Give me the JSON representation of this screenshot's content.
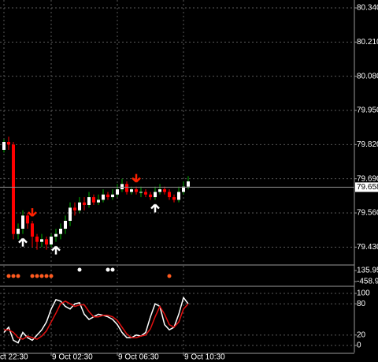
{
  "chart_data": [
    {
      "type": "candlestick",
      "categories": [
        "ct 22:30",
        null,
        null,
        null,
        null,
        null,
        null,
        null,
        null,
        null,
        "9 Oct 02:30",
        null,
        null,
        null,
        null,
        null,
        null,
        null,
        null,
        null,
        null,
        null,
        null,
        null,
        "9 Oct 06:30",
        null,
        null,
        null,
        null,
        null,
        null,
        null,
        null,
        null,
        null,
        null,
        null,
        null,
        "9 Oct 10:30",
        null
      ],
      "open": [
        79.8,
        79.83,
        79.82,
        79.48,
        79.5,
        79.55,
        79.52,
        79.47,
        79.45,
        79.46,
        79.44,
        79.47,
        79.48,
        79.5,
        79.53,
        79.58,
        79.57,
        79.6,
        79.59,
        79.62,
        79.6,
        79.61,
        79.63,
        79.62,
        79.63,
        79.65,
        79.67,
        79.64,
        79.65,
        79.64,
        79.64,
        79.63,
        79.62,
        79.64,
        79.65,
        79.64,
        79.62,
        79.61,
        79.64,
        79.66
      ],
      "high": [
        79.84,
        79.85,
        79.83,
        79.52,
        79.57,
        79.56,
        79.53,
        79.48,
        79.48,
        79.47,
        79.48,
        79.5,
        79.52,
        79.55,
        79.6,
        79.6,
        79.62,
        79.62,
        79.64,
        79.63,
        79.63,
        79.65,
        79.64,
        79.65,
        79.67,
        79.69,
        79.68,
        79.66,
        79.66,
        79.66,
        79.65,
        79.64,
        79.66,
        79.67,
        79.66,
        79.65,
        79.63,
        79.66,
        79.68,
        79.7
      ],
      "low": [
        79.79,
        79.8,
        79.46,
        79.46,
        79.48,
        79.5,
        79.43,
        79.42,
        79.43,
        79.42,
        79.43,
        79.45,
        79.46,
        79.48,
        79.51,
        79.55,
        79.56,
        79.57,
        79.58,
        79.59,
        79.59,
        79.6,
        79.61,
        79.61,
        79.62,
        79.64,
        79.63,
        79.63,
        79.63,
        79.62,
        79.62,
        79.61,
        79.61,
        79.63,
        79.63,
        79.61,
        79.6,
        79.6,
        79.63,
        79.65
      ],
      "close": [
        79.83,
        79.82,
        79.48,
        79.5,
        79.55,
        79.52,
        79.47,
        79.45,
        79.46,
        79.44,
        79.47,
        79.48,
        79.5,
        79.53,
        79.58,
        79.57,
        79.6,
        79.59,
        79.62,
        79.6,
        79.61,
        79.63,
        79.62,
        79.63,
        79.65,
        79.67,
        79.64,
        79.65,
        79.64,
        79.64,
        79.63,
        79.62,
        79.64,
        79.65,
        79.64,
        79.62,
        79.61,
        79.64,
        79.66,
        79.68
      ],
      "up_color": "#ffffff",
      "down_color": "#ff0000",
      "wick_color": "#00b000",
      "up_arrows": [
        4,
        11,
        32
      ],
      "down_arrows": [
        6,
        28
      ],
      "up_arrow_color": "#ffffff",
      "down_arrow_color": "#ff2000",
      "ylim": [
        79.365,
        80.37
      ],
      "yticks": [
        {
          "value": 80.34,
          "label": "80.340"
        },
        {
          "value": 80.21,
          "label": "80.210"
        },
        {
          "value": 80.08,
          "label": "80.080"
        },
        {
          "value": 79.95,
          "label": "79.950"
        },
        {
          "value": 79.82,
          "label": "79.820"
        },
        {
          "value": 79.69,
          "label": "79.690"
        },
        {
          "value": 79.56,
          "label": "79.560"
        },
        {
          "value": 79.43,
          "label": "79.430"
        }
      ],
      "last_price": {
        "value": 79.658,
        "label": "79.658"
      },
      "grid": true
    },
    {
      "type": "dots",
      "series": [
        {
          "color": "#ff5a1f",
          "values": [
            null,
            -161.5,
            -161.5,
            -161.5,
            null,
            null,
            -161.5,
            -161.5,
            -161.5,
            -161.5,
            -161.5,
            null,
            null,
            null,
            null,
            null,
            null,
            null,
            null,
            null,
            null,
            null,
            null,
            null,
            null,
            null,
            null,
            null,
            null,
            null,
            null,
            null,
            null,
            null,
            null,
            -161.5,
            null,
            null,
            null,
            null
          ]
        },
        {
          "color": "#ffffff",
          "values": [
            null,
            null,
            null,
            null,
            null,
            null,
            null,
            null,
            null,
            null,
            null,
            null,
            null,
            null,
            null,
            null,
            178.4,
            null,
            null,
            null,
            null,
            null,
            178.4,
            178.4,
            null,
            null,
            null,
            null,
            null,
            null,
            null,
            null,
            null,
            null,
            null,
            null,
            null,
            null,
            null,
            null
          ]
        }
      ],
      "ylim": [
        -671.3,
        390.9
      ],
      "yticks": [
        135.95,
        -458.9
      ],
      "grid": false
    },
    {
      "type": "line",
      "series": [
        {
          "color": "#ffffff",
          "values": [
            25,
            35,
            10,
            5,
            25,
            15,
            10,
            20,
            30,
            45,
            70,
            88,
            85,
            75,
            70,
            80,
            82,
            60,
            50,
            55,
            60,
            58,
            55,
            50,
            40,
            25,
            15,
            15,
            20,
            18,
            25,
            55,
            80,
            75,
            40,
            30,
            35,
            60,
            92,
            80
          ]
        },
        {
          "color": "#e01010",
          "values": [
            30,
            30,
            25,
            15,
            12,
            18,
            15,
            12,
            18,
            28,
            45,
            62,
            80,
            85,
            80,
            75,
            78,
            78,
            65,
            55,
            55,
            58,
            58,
            55,
            48,
            35,
            22,
            15,
            15,
            18,
            20,
            32,
            55,
            75,
            60,
            40,
            35,
            45,
            70,
            80
          ]
        }
      ],
      "ylim": [
        -13.6,
        109.1
      ],
      "yticks": [
        0,
        20,
        80,
        100
      ],
      "grid": true
    }
  ]
}
